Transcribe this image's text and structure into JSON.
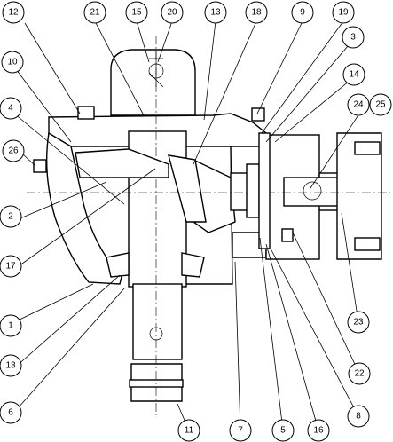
{
  "balloons": [
    {
      "id": "b12",
      "label": "12"
    },
    {
      "id": "b21",
      "label": "21"
    },
    {
      "id": "b15",
      "label": "15"
    },
    {
      "id": "b20",
      "label": "20"
    },
    {
      "id": "b13top",
      "label": "13"
    },
    {
      "id": "b18",
      "label": "18"
    },
    {
      "id": "b9",
      "label": "9"
    },
    {
      "id": "b19",
      "label": "19"
    },
    {
      "id": "b3",
      "label": "3"
    },
    {
      "id": "b10",
      "label": "10"
    },
    {
      "id": "b14",
      "label": "14"
    },
    {
      "id": "b4",
      "label": "4"
    },
    {
      "id": "b24",
      "label": "24"
    },
    {
      "id": "b25",
      "label": "25"
    },
    {
      "id": "b26",
      "label": "26"
    },
    {
      "id": "b2",
      "label": "2"
    },
    {
      "id": "b17",
      "label": "17"
    },
    {
      "id": "b1",
      "label": "1"
    },
    {
      "id": "b13bot",
      "label": "13"
    },
    {
      "id": "b23",
      "label": "23"
    },
    {
      "id": "b22",
      "label": "22"
    },
    {
      "id": "b6",
      "label": "6"
    },
    {
      "id": "b8",
      "label": "8"
    },
    {
      "id": "b11",
      "label": "11"
    },
    {
      "id": "b7",
      "label": "7"
    },
    {
      "id": "b5",
      "label": "5"
    },
    {
      "id": "b16",
      "label": "16"
    }
  ]
}
